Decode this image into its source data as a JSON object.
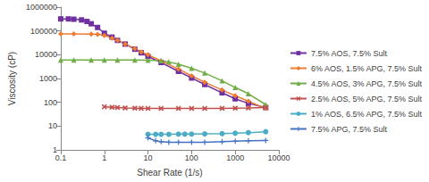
{
  "chart_data": {
    "type": "line",
    "x_label": "Shear Rate (1/s)",
    "y_label": "Viscosity (cP)",
    "log": true,
    "grid": false,
    "legend": "right",
    "xlim": [
      0.1,
      10000
    ],
    "xticks": [
      0.1,
      1,
      10,
      100,
      1000,
      10000
    ],
    "ylim": [
      1,
      1000000
    ],
    "yticks": [
      1,
      10,
      100,
      1000,
      10000,
      100000,
      1000000
    ],
    "series": [
      {
        "name": "7.5% AOS, 7.5% Sult",
        "color": "#7030A0",
        "marker": "square",
        "x": [
          0.1,
          0.15,
          0.2,
          0.3,
          0.4,
          0.5,
          0.7,
          1,
          1.5,
          2,
          3,
          5,
          7,
          10,
          20,
          50,
          100,
          200,
          500,
          1000,
          2000,
          5000
        ],
        "values": [
          320000,
          320000,
          310000,
          290000,
          250000,
          200000,
          140000,
          80000,
          55000,
          40000,
          28000,
          17000,
          12000,
          8500,
          4700,
          2000,
          1050,
          560,
          250,
          140,
          90,
          60
        ]
      },
      {
        "name": "6% AOS, 1.5% APG, 7.5% Sult",
        "color": "#ED7D31",
        "marker": "diamond",
        "x": [
          0.1,
          0.2,
          0.5,
          0.7,
          1,
          1.5,
          2,
          3,
          5,
          7,
          10,
          20,
          50,
          100,
          200,
          500,
          1000,
          2000,
          5000
        ],
        "values": [
          75000,
          75000,
          74000,
          72000,
          65000,
          50000,
          40000,
          28000,
          18000,
          13000,
          10000,
          5500,
          2500,
          1300,
          700,
          330,
          190,
          110,
          55
        ]
      },
      {
        "name": "4.5% AOS, 3% APG, 7.5% Sult",
        "color": "#70AD47",
        "marker": "triangle",
        "x": [
          0.1,
          0.2,
          0.5,
          1,
          2,
          5,
          10,
          20,
          30,
          50,
          100,
          200,
          500,
          1000,
          2000,
          5000
        ],
        "values": [
          6000,
          6000,
          6000,
          6000,
          6000,
          6000,
          5900,
          5600,
          5000,
          4000,
          2700,
          1700,
          800,
          420,
          230,
          80
        ]
      },
      {
        "name": "2.5% AOS, 5% APG, 7.5% Sult",
        "color": "#C0504D",
        "marker": "x",
        "x": [
          1,
          1.5,
          2,
          3,
          5,
          7,
          10,
          20,
          50,
          100,
          200,
          500,
          1000,
          2000,
          5000
        ],
        "values": [
          65,
          62,
          60,
          58,
          57,
          56,
          55,
          55,
          55,
          55,
          55,
          56,
          57,
          58,
          60
        ]
      },
      {
        "name": "1% AOS, 6.5% APG, 7.5% Sult",
        "color": "#4BACC6",
        "marker": "circle",
        "x": [
          10,
          15,
          20,
          30,
          50,
          70,
          100,
          200,
          500,
          1000,
          2000,
          5000
        ],
        "values": [
          4.5,
          4.5,
          4.5,
          4.5,
          4.6,
          4.6,
          4.6,
          4.7,
          4.8,
          5,
          5.3,
          5.8
        ]
      },
      {
        "name": "7.5% APG, 7.5% Sult",
        "color": "#4472C4",
        "marker": "plus",
        "x": [
          10,
          15,
          20,
          30,
          50,
          100,
          200,
          500,
          1000,
          2000,
          5000
        ],
        "values": [
          3.2,
          2.4,
          2.2,
          2.1,
          2.1,
          2.1,
          2.1,
          2.2,
          2.3,
          2.4,
          2.5
        ]
      }
    ]
  }
}
